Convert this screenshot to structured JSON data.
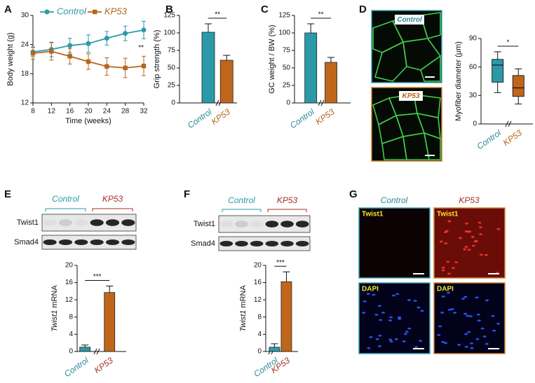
{
  "chart_data": [
    {
      "type": "line",
      "panel": "A",
      "xlabel": "Time (weeks)",
      "ylabel": "Body weight (g)",
      "x": [
        8,
        12,
        16,
        20,
        24,
        28,
        32
      ],
      "xlim": [
        8,
        32
      ],
      "xticks": [
        8,
        12,
        16,
        20,
        24,
        28,
        32
      ],
      "ylim": [
        12,
        30
      ],
      "yticks": [
        12,
        18,
        24,
        30
      ],
      "annotation": "**",
      "legend": "top",
      "series": [
        {
          "name": "Control",
          "color": "#2a9aa8",
          "marker": "circle",
          "values": [
            22.5,
            23,
            23.8,
            24.2,
            25.3,
            26.3,
            27
          ],
          "errors": [
            1,
            1.5,
            1.5,
            1.8,
            1.4,
            1.5,
            1.8
          ]
        },
        {
          "name": "KP53",
          "color": "#b5651d",
          "marker": "square",
          "values": [
            22.2,
            22.6,
            21.6,
            20.5,
            19.5,
            19.2,
            19.6
          ],
          "errors": [
            1.2,
            1.8,
            1.6,
            1.6,
            1.8,
            2,
            2
          ]
        }
      ]
    },
    {
      "type": "bar",
      "panel": "B",
      "ylabel": "Grip strength (%)",
      "categories": [
        "Control",
        "KP53"
      ],
      "values": [
        101,
        61
      ],
      "errors": [
        12,
        7
      ],
      "colors": [
        "#2a9aa8",
        "#c0661a"
      ],
      "label_colors": [
        "#2a8a9a",
        "#b5651d"
      ],
      "ylim": [
        0,
        125
      ],
      "yticks": [
        0,
        25,
        50,
        75,
        100,
        125
      ],
      "significance": "**"
    },
    {
      "type": "bar",
      "panel": "C",
      "ylabel": "GC weight / BW (%)",
      "categories": [
        "Control",
        "KP53"
      ],
      "values": [
        100,
        58
      ],
      "errors": [
        13,
        7
      ],
      "colors": [
        "#2a9aa8",
        "#c0661a"
      ],
      "label_colors": [
        "#2a8a9a",
        "#b5651d"
      ],
      "ylim": [
        0,
        125
      ],
      "yticks": [
        0,
        25,
        50,
        75,
        100,
        125
      ],
      "significance": "**"
    },
    {
      "type": "box",
      "ylabel": "Myofiber diameter (μm)",
      "categories": [
        "Control",
        "KP53"
      ],
      "boxes": [
        {
          "min": 33,
          "q1": 44,
          "median": 62,
          "q3": 68,
          "max": 76
        },
        {
          "min": 21,
          "q1": 29,
          "median": 38,
          "q3": 51,
          "max": 58
        }
      ],
      "colors": [
        "#2a9aa8",
        "#c0661a"
      ],
      "label_colors": [
        "#2a8a9a",
        "#b5651d"
      ],
      "ylim": [
        0,
        90
      ],
      "yticks": [
        0,
        30,
        60,
        90
      ],
      "significance": "*"
    },
    {
      "type": "bar",
      "ylabel_italic": "Twist1",
      "ylabel": "mRNA",
      "categories": [
        "Control",
        "KP53"
      ],
      "values": [
        1,
        13.7
      ],
      "errors": [
        0.5,
        1.5
      ],
      "colors": [
        "#2a9aa8",
        "#c0661a"
      ],
      "label_colors": [
        "#2a8a9a",
        "#a5302a"
      ],
      "ylim": [
        0,
        20
      ],
      "yticks": [
        0,
        4,
        8,
        12,
        16,
        20
      ],
      "significance": "***"
    },
    {
      "type": "bar",
      "ylabel_italic": "Twist1",
      "ylabel": "mRNA",
      "categories": [
        "Control",
        "KP53"
      ],
      "values": [
        1,
        16.2
      ],
      "errors": [
        0.8,
        2.3
      ],
      "colors": [
        "#2a9aa8",
        "#c0661a"
      ],
      "label_colors": [
        "#2a8a9a",
        "#a5302a"
      ],
      "ylim": [
        0,
        20
      ],
      "yticks": [
        0,
        4,
        8,
        12,
        16,
        20
      ],
      "significance": "***"
    }
  ],
  "micrographs_d": {
    "panel": "D",
    "labels": [
      "Control",
      "KP53"
    ]
  },
  "blots": [
    {
      "panel": "E",
      "groups": [
        "Control",
        "KP53"
      ],
      "rows": [
        "Twist1",
        "Smad4"
      ]
    },
    {
      "panel": "F",
      "groups": [
        "Control",
        "KP53"
      ],
      "rows": [
        "Twist1",
        "Smad4"
      ]
    }
  ],
  "panel_g": {
    "panel": "G",
    "columns": [
      "Control",
      "KP53"
    ],
    "stains": [
      "Twist1",
      "Twist1",
      "DAPI",
      "DAPI"
    ]
  }
}
